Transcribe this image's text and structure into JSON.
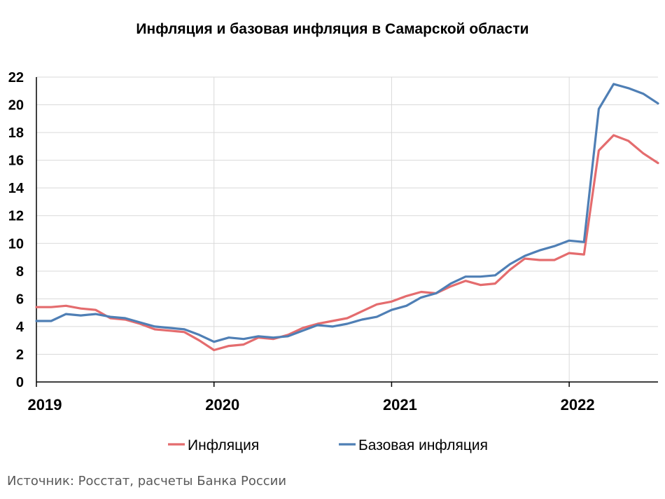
{
  "chart_data": {
    "type": "line",
    "title": "Инфляция и базовая инфляция в Самарской области",
    "xlabel": "",
    "ylabel": "",
    "ylim": [
      0,
      22
    ],
    "yticks": [
      0,
      2,
      4,
      6,
      8,
      10,
      12,
      14,
      16,
      18,
      20,
      22
    ],
    "x_ticks": [
      "2019",
      "2020",
      "2021",
      "2022"
    ],
    "x_range": [
      "2019-01",
      "2022-07"
    ],
    "grid": true,
    "legend": "bottom",
    "x": [
      "2019-01",
      "2019-02",
      "2019-03",
      "2019-04",
      "2019-05",
      "2019-06",
      "2019-07",
      "2019-08",
      "2019-09",
      "2019-10",
      "2019-11",
      "2019-12",
      "2020-01",
      "2020-02",
      "2020-03",
      "2020-04",
      "2020-05",
      "2020-06",
      "2020-07",
      "2020-08",
      "2020-09",
      "2020-10",
      "2020-11",
      "2020-12",
      "2021-01",
      "2021-02",
      "2021-03",
      "2021-04",
      "2021-05",
      "2021-06",
      "2021-07",
      "2021-08",
      "2021-09",
      "2021-10",
      "2021-11",
      "2021-12",
      "2022-01",
      "2022-02",
      "2022-03",
      "2022-04",
      "2022-05",
      "2022-06",
      "2022-07"
    ],
    "series": [
      {
        "name": "Инфляция",
        "color": "#e46c6e",
        "values": [
          5.4,
          5.4,
          5.5,
          5.3,
          5.2,
          4.6,
          4.5,
          4.2,
          3.8,
          3.7,
          3.6,
          3.0,
          2.3,
          2.6,
          2.7,
          3.2,
          3.1,
          3.4,
          3.9,
          4.2,
          4.4,
          4.6,
          5.1,
          5.6,
          5.8,
          6.2,
          6.5,
          6.4,
          6.9,
          7.3,
          7.0,
          7.1,
          8.1,
          8.9,
          8.8,
          8.8,
          9.3,
          9.2,
          16.7,
          17.8,
          17.4,
          16.5,
          15.8
        ]
      },
      {
        "name": "Базовая инфляция",
        "color": "#4f7fb5",
        "values": [
          4.4,
          4.4,
          4.9,
          4.8,
          4.9,
          4.7,
          4.6,
          4.3,
          4.0,
          3.9,
          3.8,
          3.4,
          2.9,
          3.2,
          3.1,
          3.3,
          3.2,
          3.3,
          3.7,
          4.1,
          4.0,
          4.2,
          4.5,
          4.7,
          5.2,
          5.5,
          6.1,
          6.4,
          7.1,
          7.6,
          7.6,
          7.7,
          8.5,
          9.1,
          9.5,
          9.8,
          10.2,
          10.1,
          19.7,
          21.5,
          21.2,
          20.8,
          20.1
        ]
      }
    ]
  },
  "source": "Источник: Росстат, расчеты Банка России"
}
